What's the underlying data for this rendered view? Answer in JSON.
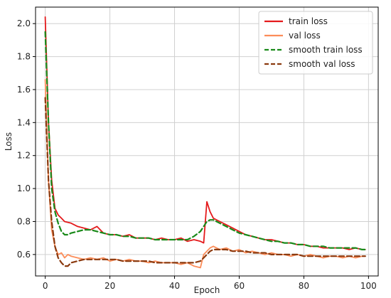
{
  "chart_data": {
    "type": "line",
    "title": "",
    "xlabel": "Epoch",
    "ylabel": "Loss",
    "xlim": [
      -3,
      103
    ],
    "ylim": [
      0.47,
      2.1
    ],
    "x_ticks": [
      0,
      20,
      40,
      60,
      80,
      100
    ],
    "y_ticks": [
      0.6,
      0.8,
      1.0,
      1.2,
      1.4,
      1.6,
      1.8,
      2.0
    ],
    "x_tick_labels": [
      "0",
      "20",
      "40",
      "60",
      "80",
      "100"
    ],
    "y_tick_labels": [
      "0.6",
      "0.8",
      "1.0",
      "1.2",
      "1.4",
      "1.6",
      "1.8",
      "2.0"
    ],
    "grid": true,
    "legend_position": "top-right",
    "series": [
      {
        "name": "train loss",
        "color": "#e41a1c",
        "dash": "solid",
        "x": [
          0,
          1,
          2,
          3,
          4,
          5,
          6,
          8,
          10,
          12,
          14,
          16,
          18,
          20,
          22,
          24,
          26,
          28,
          30,
          32,
          34,
          36,
          38,
          40,
          42,
          44,
          46,
          48,
          49,
          50,
          51,
          52,
          54,
          56,
          58,
          60,
          62,
          64,
          66,
          68,
          70,
          72,
          74,
          76,
          78,
          80,
          82,
          84,
          86,
          88,
          90,
          92,
          94,
          96,
          98,
          99
        ],
        "y": [
          2.04,
          1.4,
          1.05,
          0.88,
          0.84,
          0.82,
          0.8,
          0.79,
          0.77,
          0.76,
          0.75,
          0.77,
          0.73,
          0.72,
          0.72,
          0.71,
          0.72,
          0.7,
          0.7,
          0.7,
          0.69,
          0.7,
          0.69,
          0.69,
          0.7,
          0.68,
          0.69,
          0.68,
          0.67,
          0.92,
          0.86,
          0.82,
          0.8,
          0.78,
          0.76,
          0.74,
          0.72,
          0.71,
          0.7,
          0.69,
          0.69,
          0.68,
          0.67,
          0.67,
          0.66,
          0.66,
          0.65,
          0.65,
          0.64,
          0.64,
          0.64,
          0.64,
          0.63,
          0.64,
          0.63,
          0.63
        ]
      },
      {
        "name": "val loss",
        "color": "#fc8d59",
        "dash": "solid",
        "x": [
          0,
          1,
          2,
          3,
          4,
          5,
          6,
          7,
          8,
          10,
          12,
          14,
          16,
          18,
          20,
          22,
          24,
          26,
          28,
          30,
          32,
          34,
          36,
          38,
          40,
          42,
          44,
          46,
          48,
          49,
          50,
          51,
          52,
          54,
          56,
          58,
          60,
          62,
          64,
          66,
          68,
          70,
          72,
          74,
          76,
          78,
          80,
          82,
          84,
          86,
          88,
          90,
          92,
          94,
          96,
          98,
          99
        ],
        "y": [
          1.66,
          1.05,
          0.75,
          0.65,
          0.6,
          0.61,
          0.58,
          0.6,
          0.59,
          0.58,
          0.57,
          0.58,
          0.57,
          0.58,
          0.56,
          0.57,
          0.56,
          0.57,
          0.56,
          0.56,
          0.55,
          0.56,
          0.55,
          0.55,
          0.55,
          0.54,
          0.55,
          0.53,
          0.52,
          0.6,
          0.62,
          0.64,
          0.65,
          0.63,
          0.64,
          0.62,
          0.63,
          0.61,
          0.62,
          0.61,
          0.6,
          0.61,
          0.6,
          0.6,
          0.59,
          0.6,
          0.59,
          0.6,
          0.59,
          0.58,
          0.59,
          0.59,
          0.58,
          0.59,
          0.58,
          0.59,
          0.59
        ]
      },
      {
        "name": "smooth train loss",
        "color": "#1a8a1a",
        "dash": "dashed",
        "x": [
          0,
          1,
          2,
          3,
          4,
          5,
          6,
          7,
          8,
          10,
          12,
          14,
          16,
          18,
          20,
          22,
          24,
          26,
          28,
          30,
          32,
          34,
          36,
          38,
          40,
          42,
          44,
          46,
          48,
          49,
          50,
          51,
          52,
          54,
          56,
          58,
          60,
          62,
          64,
          66,
          68,
          70,
          72,
          74,
          76,
          78,
          80,
          82,
          84,
          86,
          88,
          90,
          92,
          94,
          96,
          98,
          99
        ],
        "y": [
          1.95,
          1.4,
          1.0,
          0.86,
          0.79,
          0.74,
          0.72,
          0.72,
          0.73,
          0.74,
          0.75,
          0.75,
          0.74,
          0.73,
          0.72,
          0.72,
          0.71,
          0.71,
          0.7,
          0.7,
          0.7,
          0.69,
          0.69,
          0.69,
          0.69,
          0.69,
          0.69,
          0.71,
          0.74,
          0.77,
          0.8,
          0.81,
          0.81,
          0.79,
          0.77,
          0.75,
          0.73,
          0.72,
          0.71,
          0.7,
          0.69,
          0.68,
          0.68,
          0.67,
          0.67,
          0.66,
          0.66,
          0.65,
          0.65,
          0.65,
          0.64,
          0.64,
          0.64,
          0.64,
          0.64,
          0.63,
          0.63
        ]
      },
      {
        "name": "smooth val loss",
        "color": "#8b3a0f",
        "dash": "dashed",
        "x": [
          0,
          1,
          2,
          3,
          4,
          5,
          6,
          7,
          8,
          10,
          12,
          14,
          16,
          18,
          20,
          22,
          24,
          26,
          28,
          30,
          32,
          34,
          36,
          38,
          40,
          42,
          44,
          46,
          48,
          49,
          50,
          51,
          52,
          54,
          56,
          58,
          60,
          62,
          64,
          66,
          68,
          70,
          72,
          74,
          76,
          78,
          80,
          82,
          84,
          86,
          88,
          90,
          92,
          94,
          96,
          98,
          99
        ],
        "y": [
          1.55,
          1.05,
          0.8,
          0.65,
          0.58,
          0.55,
          0.53,
          0.53,
          0.55,
          0.56,
          0.57,
          0.57,
          0.57,
          0.57,
          0.57,
          0.57,
          0.56,
          0.56,
          0.56,
          0.56,
          0.56,
          0.55,
          0.55,
          0.55,
          0.55,
          0.55,
          0.55,
          0.55,
          0.56,
          0.58,
          0.6,
          0.62,
          0.63,
          0.63,
          0.63,
          0.62,
          0.62,
          0.62,
          0.61,
          0.61,
          0.61,
          0.6,
          0.6,
          0.6,
          0.6,
          0.6,
          0.59,
          0.59,
          0.59,
          0.59,
          0.59,
          0.59,
          0.59,
          0.59,
          0.59,
          0.59,
          0.59
        ]
      }
    ]
  }
}
